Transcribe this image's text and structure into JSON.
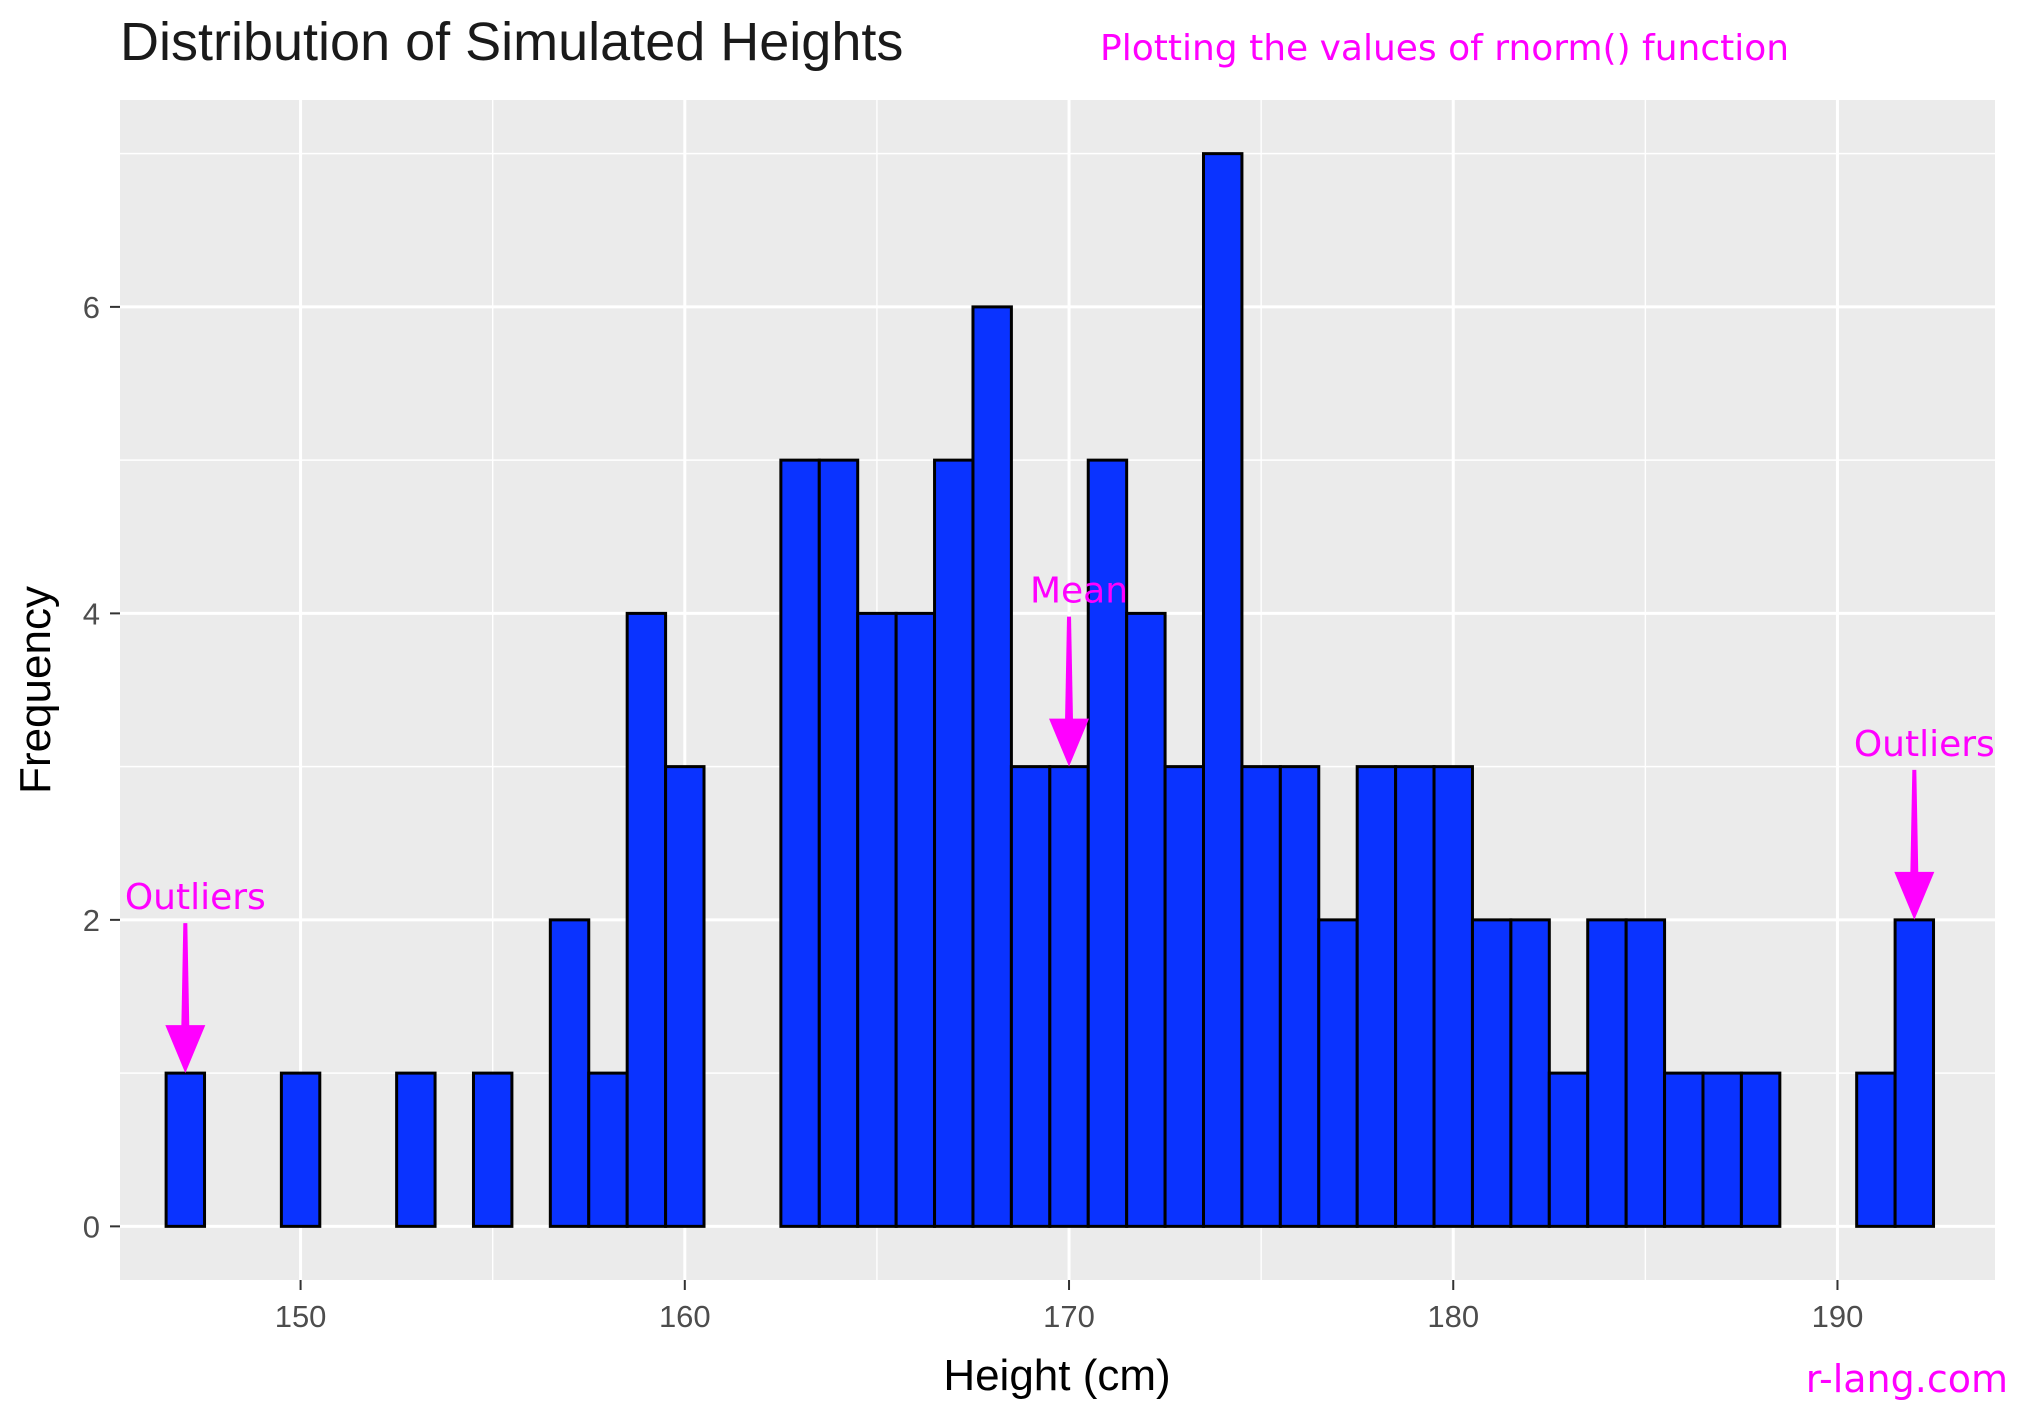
{
  "chart_data": {
    "type": "bar",
    "title": "Distribution of Simulated Heights",
    "subtitle": "Plotting the values of rnorm() function",
    "xlabel": "Height (cm)",
    "ylabel": "Frequency",
    "xlim": [
      145.3,
      194.1
    ],
    "ylim": [
      -0.35,
      7.35
    ],
    "x_ticks": [
      150,
      160,
      170,
      180,
      190
    ],
    "y_ticks": [
      0,
      2,
      4,
      6
    ],
    "bin_width": 1,
    "bins": [
      {
        "x": 147,
        "count": 1
      },
      {
        "x": 148,
        "count": 0
      },
      {
        "x": 149,
        "count": 0
      },
      {
        "x": 150,
        "count": 1
      },
      {
        "x": 151,
        "count": 0
      },
      {
        "x": 152,
        "count": 0
      },
      {
        "x": 153,
        "count": 1
      },
      {
        "x": 154,
        "count": 0
      },
      {
        "x": 155,
        "count": 1
      },
      {
        "x": 156,
        "count": 0
      },
      {
        "x": 157,
        "count": 2
      },
      {
        "x": 158,
        "count": 1
      },
      {
        "x": 159,
        "count": 4
      },
      {
        "x": 160,
        "count": 3
      },
      {
        "x": 161,
        "count": 0
      },
      {
        "x": 162,
        "count": 0
      },
      {
        "x": 163,
        "count": 5
      },
      {
        "x": 164,
        "count": 5
      },
      {
        "x": 165,
        "count": 4
      },
      {
        "x": 166,
        "count": 4
      },
      {
        "x": 167,
        "count": 5
      },
      {
        "x": 168,
        "count": 6
      },
      {
        "x": 169,
        "count": 3
      },
      {
        "x": 170,
        "count": 3
      },
      {
        "x": 171,
        "count": 5
      },
      {
        "x": 172,
        "count": 4
      },
      {
        "x": 173,
        "count": 3
      },
      {
        "x": 174,
        "count": 7
      },
      {
        "x": 175,
        "count": 3
      },
      {
        "x": 176,
        "count": 3
      },
      {
        "x": 177,
        "count": 2
      },
      {
        "x": 178,
        "count": 3
      },
      {
        "x": 179,
        "count": 3
      },
      {
        "x": 180,
        "count": 3
      },
      {
        "x": 181,
        "count": 2
      },
      {
        "x": 182,
        "count": 2
      },
      {
        "x": 183,
        "count": 1
      },
      {
        "x": 184,
        "count": 2
      },
      {
        "x": 185,
        "count": 2
      },
      {
        "x": 186,
        "count": 1
      },
      {
        "x": 187,
        "count": 1
      },
      {
        "x": 188,
        "count": 1
      },
      {
        "x": 189,
        "count": 0
      },
      {
        "x": 190,
        "count": 0
      },
      {
        "x": 191,
        "count": 1
      },
      {
        "x": 192,
        "count": 2
      }
    ],
    "bar_fill": "#0a33ff",
    "bar_stroke": "#000000",
    "panel_background": "#ebebeb",
    "grid": true,
    "legend": "none",
    "annotations": [
      {
        "label": "Outliers",
        "x": 147,
        "y": 1
      },
      {
        "label": "Mean",
        "x": 170,
        "y": 3
      },
      {
        "label": "Outliers",
        "x": 192,
        "y": 2
      }
    ],
    "annotation_color": "#ff00ff"
  },
  "watermark": "r-lang.com"
}
